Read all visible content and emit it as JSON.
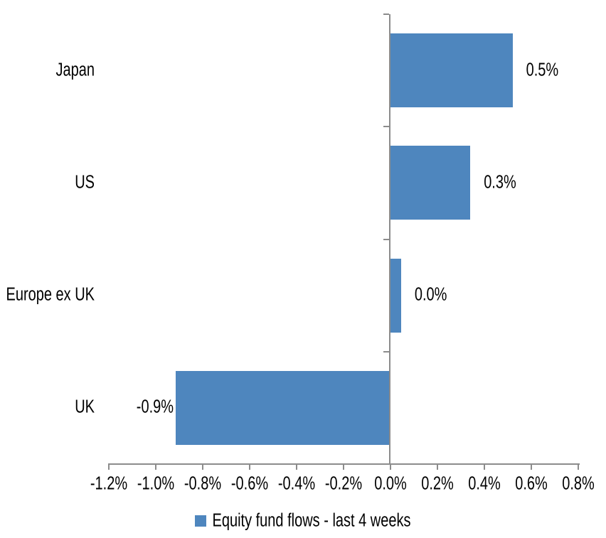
{
  "chart_data": {
    "type": "bar",
    "orientation": "horizontal",
    "categories": [
      "Japan",
      "US",
      "Europe ex UK",
      "UK"
    ],
    "values": [
      0.5,
      0.3,
      0.0,
      -0.9
    ],
    "data_labels": [
      "0.5%",
      "0.3%",
      "0.0%",
      "-0.9%"
    ],
    "bar_display_values_pct": [
      0.52,
      0.34,
      0.045,
      -0.915
    ],
    "series": [
      {
        "name": "Equity fund flows - last 4 weeks",
        "values": [
          0.5,
          0.3,
          0.0,
          -0.9
        ]
      }
    ],
    "x_axis": {
      "min": -1.2,
      "max": 0.8,
      "tick_step": 0.2,
      "tick_labels": [
        "-1.2%",
        "-1.0%",
        "-0.8%",
        "-0.6%",
        "-0.4%",
        "-0.2%",
        "0.0%",
        "0.2%",
        "0.4%",
        "0.6%",
        "0.8%"
      ]
    },
    "grid": false,
    "legend": {
      "position": "bottom",
      "entries": [
        {
          "label": "Equity fund flows - last 4 weeks",
          "color": "#4E86BE"
        }
      ]
    },
    "colors": {
      "bar": "#4E86BE",
      "axis": "#8C8C8C",
      "text": "#000000",
      "background": "#FFFFFF"
    }
  }
}
